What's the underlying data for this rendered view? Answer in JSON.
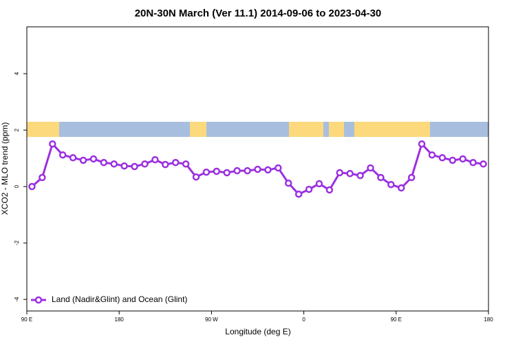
{
  "chart_data": {
    "type": "line",
    "title": "20N-30N March (Ver 11.1)   2014-09-06 to 2023-04-30",
    "x_label": "Longitude (deg E)",
    "y_label": "XCO2 - MLO trend (ppm)",
    "x": [
      95,
      105,
      115,
      125,
      135,
      145,
      155,
      165,
      175,
      185,
      195,
      205,
      215,
      225,
      235,
      245,
      255,
      265,
      275,
      285,
      295,
      305,
      315,
      325,
      335,
      345,
      355,
      365,
      375,
      385,
      395,
      405,
      415,
      425,
      435,
      445,
      455,
      465,
      475,
      485,
      495,
      505,
      515,
      525,
      535
    ],
    "series": [
      {
        "name": "Land (Nadir&Glint) and Ocean (Glint)",
        "color": "#9b30e0",
        "values": [
          0,
          0.32,
          1.51,
          1.12,
          1.02,
          0.93,
          0.98,
          0.85,
          0.8,
          0.73,
          0.71,
          0.8,
          0.95,
          0.78,
          0.85,
          0.8,
          0.34,
          0.51,
          0.54,
          0.49,
          0.56,
          0.56,
          0.61,
          0.59,
          0.66,
          0.12,
          -0.27,
          -0.1,
          0.1,
          -0.12,
          0.49,
          0.46,
          0.39,
          0.66,
          0.32,
          0.07,
          -0.05,
          0.32,
          1.51,
          1.12,
          1.02,
          0.93,
          0.98,
          0.85,
          0.8
        ]
      }
    ],
    "xlim": [
      90,
      540
    ],
    "xticks": [
      {
        "value": 90,
        "label": "90 E"
      },
      180,
      {
        "value": 270,
        "label": "90 W"
      },
      {
        "value": 360,
        "label": "0"
      },
      {
        "value": 450,
        "label": "90 E"
      },
      {
        "value": 540,
        "label": "180"
      }
    ],
    "ylim": [
      -4.41,
      5.66
    ],
    "yticks": [
      -4,
      -2,
      0,
      2,
      4
    ],
    "legend": "bottom-left"
  }
}
